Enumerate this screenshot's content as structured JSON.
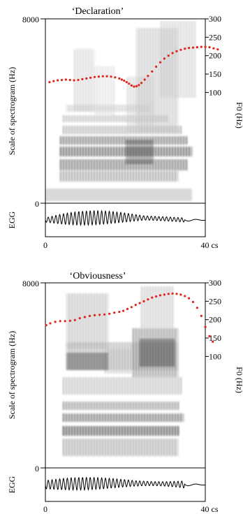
{
  "panels": [
    {
      "title": "‘Declaration’",
      "left_axis_label": "Scale of spectrogram (Hz)",
      "left_ticks": [
        "8000",
        "0"
      ],
      "right_axis_label": "F0 (Hz)",
      "right_ticks": [
        "300",
        "250",
        "200",
        "150",
        "100"
      ],
      "egg_label": "EGG",
      "time_ticks": [
        "0",
        "40 cs"
      ],
      "f0_color": "#e0231c",
      "f0": [
        [
          1.0,
          128
        ],
        [
          2.0,
          131
        ],
        [
          3.0,
          133
        ],
        [
          4.0,
          134
        ],
        [
          5.0,
          135
        ],
        [
          6.0,
          134
        ],
        [
          7.0,
          133
        ],
        [
          8.0,
          134
        ],
        [
          9.0,
          136
        ],
        [
          10.0,
          138
        ],
        [
          11.0,
          140
        ],
        [
          12.0,
          142
        ],
        [
          13.0,
          143
        ],
        [
          14.0,
          144
        ],
        [
          15.0,
          144
        ],
        [
          16.0,
          143
        ],
        [
          17.0,
          141
        ],
        [
          18.0,
          138
        ],
        [
          18.6,
          135
        ],
        [
          19.2,
          132
        ],
        [
          19.8,
          128
        ],
        [
          20.4,
          124
        ],
        [
          21.0,
          119
        ],
        [
          21.6,
          116
        ],
        [
          22.2,
          117
        ],
        [
          22.8,
          120
        ],
        [
          23.4,
          126
        ],
        [
          24.2,
          135
        ],
        [
          25.0,
          145
        ],
        [
          26.0,
          157
        ],
        [
          27.0,
          170
        ],
        [
          28.0,
          182
        ],
        [
          29.0,
          192
        ],
        [
          30.0,
          200
        ],
        [
          31.0,
          207
        ],
        [
          32.0,
          212
        ],
        [
          33.0,
          216
        ],
        [
          34.0,
          219
        ],
        [
          35.0,
          221
        ],
        [
          36.0,
          222
        ],
        [
          37.0,
          223
        ],
        [
          38.0,
          224
        ],
        [
          39.0,
          224
        ],
        [
          40.0,
          223
        ],
        [
          41.0,
          220
        ],
        [
          42.0,
          217
        ]
      ]
    },
    {
      "title": "‘Obviousness’",
      "left_axis_label": "Scale of spectrogram (Hz)",
      "left_ticks": [
        "8000",
        "0"
      ],
      "right_axis_label": "F0 (Hz)",
      "right_ticks": [
        "300",
        "250",
        "200",
        "150",
        "100"
      ],
      "egg_label": "EGG",
      "time_ticks": [
        "0",
        "40 cs"
      ],
      "f0_color": "#e0231c",
      "f0": [
        [
          0.2,
          185
        ],
        [
          1.2,
          190
        ],
        [
          2.4,
          194
        ],
        [
          3.6,
          196
        ],
        [
          4.8,
          196
        ],
        [
          6.0,
          197
        ],
        [
          7.2,
          199
        ],
        [
          8.4,
          204
        ],
        [
          9.6,
          207
        ],
        [
          10.8,
          210
        ],
        [
          12.0,
          212
        ],
        [
          13.2,
          213
        ],
        [
          14.4,
          214
        ],
        [
          15.6,
          216
        ],
        [
          16.8,
          219
        ],
        [
          18.0,
          221
        ],
        [
          19.0,
          224
        ],
        [
          20.0,
          229
        ],
        [
          21.0,
          234
        ],
        [
          22.0,
          240
        ],
        [
          23.0,
          245
        ],
        [
          24.0,
          250
        ],
        [
          25.0,
          255
        ],
        [
          26.0,
          260
        ],
        [
          27.0,
          263
        ],
        [
          28.0,
          266
        ],
        [
          29.0,
          268
        ],
        [
          30.0,
          270
        ],
        [
          31.0,
          271
        ],
        [
          32.0,
          270
        ],
        [
          33.0,
          268
        ],
        [
          34.0,
          264
        ],
        [
          35.0,
          258
        ],
        [
          36.0,
          248
        ],
        [
          37.0,
          232
        ],
        [
          38.0,
          210
        ],
        [
          39.0,
          180
        ],
        [
          40.0,
          155
        ],
        [
          40.8,
          140
        ]
      ]
    }
  ]
}
